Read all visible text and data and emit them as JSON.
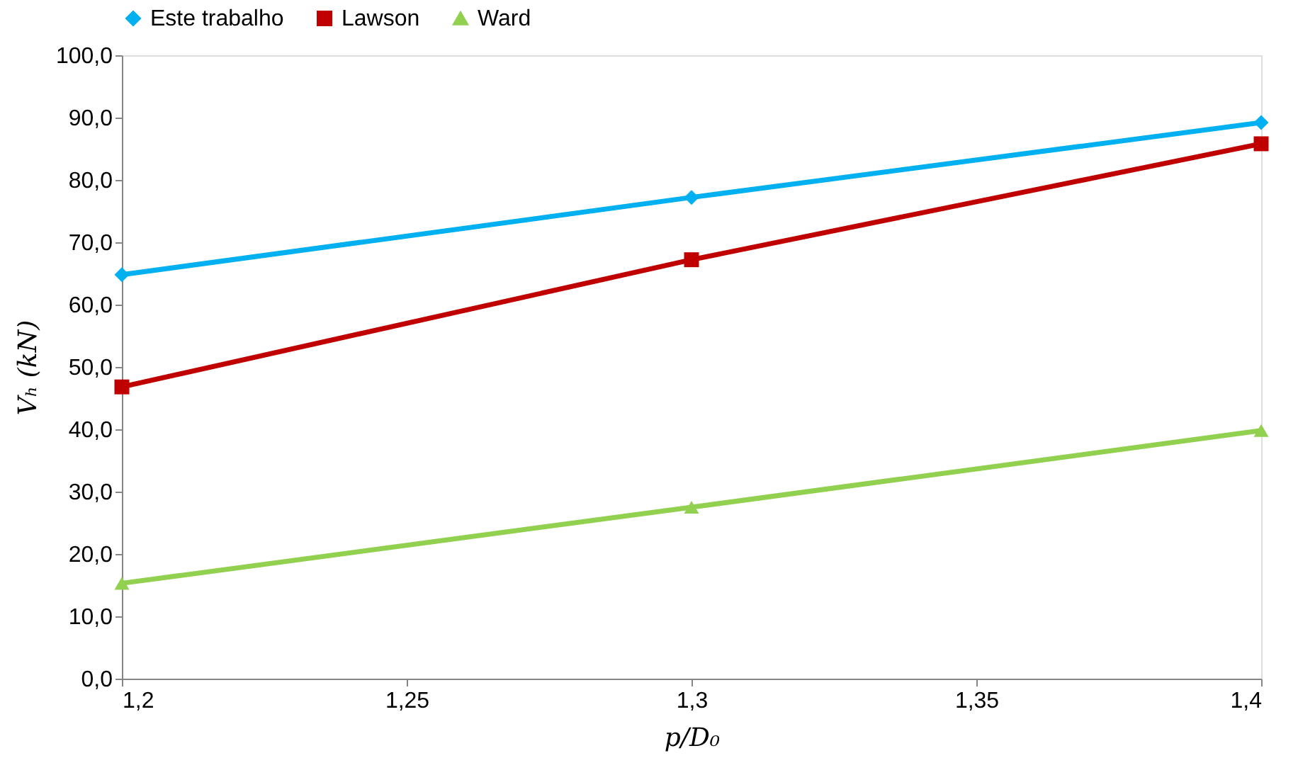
{
  "chart_data": {
    "type": "line",
    "xlabel": "p/D₀",
    "ylabel": "Vₕ (kN)",
    "x": [
      1.2,
      1.3,
      1.4
    ],
    "series": [
      {
        "name": "Este trabalho",
        "color": "#00b0f0",
        "marker": "diamond",
        "values": [
          64.8,
          77.2,
          89.2
        ]
      },
      {
        "name": "Lawson",
        "color": "#c00000",
        "marker": "square",
        "values": [
          46.8,
          67.2,
          85.8
        ]
      },
      {
        "name": "Ward",
        "color": "#92d050",
        "marker": "triangle",
        "values": [
          15.3,
          27.5,
          39.8
        ]
      }
    ],
    "xlim": [
      1.2,
      1.4
    ],
    "xticks": [
      {
        "value": 1.2,
        "label": "1,2"
      },
      {
        "value": 1.25,
        "label": "1,25"
      },
      {
        "value": 1.3,
        "label": "1,3"
      },
      {
        "value": 1.35,
        "label": "1,35"
      },
      {
        "value": 1.4,
        "label": "1,4"
      }
    ],
    "ylim": [
      0,
      100
    ],
    "yticks": [
      {
        "value": 0,
        "label": "0,0"
      },
      {
        "value": 10,
        "label": "10,0"
      },
      {
        "value": 20,
        "label": "20,0"
      },
      {
        "value": 30,
        "label": "30,0"
      },
      {
        "value": 40,
        "label": "40,0"
      },
      {
        "value": 50,
        "label": "50,0"
      },
      {
        "value": 60,
        "label": "60,0"
      },
      {
        "value": 70,
        "label": "70,0"
      },
      {
        "value": 80,
        "label": "80,0"
      },
      {
        "value": 90,
        "label": "90,0"
      },
      {
        "value": 100,
        "label": "100,0"
      }
    ],
    "grid": false,
    "legend": "top",
    "line_style": "solid"
  }
}
